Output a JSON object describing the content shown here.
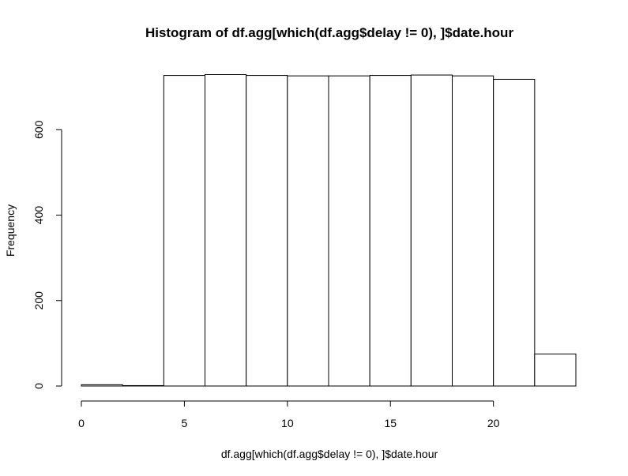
{
  "chart_data": {
    "type": "bar",
    "title": "Histogram of df.agg[which(df.agg$delay != 0), ]$date.hour",
    "xlabel": "df.agg[which(df.agg$delay != 0), ]$date.hour",
    "ylabel": "Frequency",
    "bins": [
      {
        "x0": 0,
        "x1": 2,
        "count": 3
      },
      {
        "x0": 2,
        "x1": 4,
        "count": 1
      },
      {
        "x0": 4,
        "x1": 6,
        "count": 727
      },
      {
        "x0": 6,
        "x1": 8,
        "count": 729
      },
      {
        "x0": 8,
        "x1": 10,
        "count": 727
      },
      {
        "x0": 10,
        "x1": 12,
        "count": 726
      },
      {
        "x0": 12,
        "x1": 14,
        "count": 726
      },
      {
        "x0": 14,
        "x1": 16,
        "count": 727
      },
      {
        "x0": 16,
        "x1": 18,
        "count": 728
      },
      {
        "x0": 18,
        "x1": 20,
        "count": 726
      },
      {
        "x0": 20,
        "x1": 22,
        "count": 718
      },
      {
        "x0": 22,
        "x1": 24,
        "count": 75
      }
    ],
    "xticks": [
      0,
      5,
      10,
      15,
      20
    ],
    "yticks": [
      0,
      200,
      400,
      600
    ],
    "xlim": [
      0,
      24
    ],
    "ylim": [
      0,
      729
    ],
    "grid": false,
    "colors": {
      "bar_fill": "#ffffff",
      "bar_stroke": "#000000"
    }
  }
}
